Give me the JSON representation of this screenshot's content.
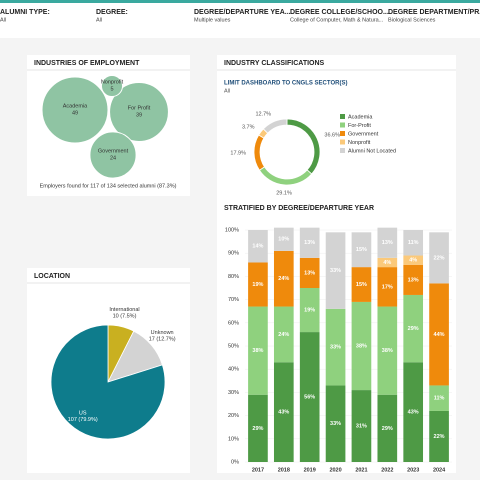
{
  "filters": [
    {
      "label": "ALUMNI TYPE:",
      "value": "All"
    },
    {
      "label": "DEGREE:",
      "value": "All"
    },
    {
      "label": "DEGREE/DEPARTURE YEA...",
      "value": "Multiple values"
    },
    {
      "label": "DEGREE COLLEGE/SCHOO...",
      "value": "College of Computer, Math & Natura..."
    },
    {
      "label": "DEGREE DEPARTMENT/PR...",
      "value": "Biological Sciences"
    }
  ],
  "chart_data": [
    {
      "type": "bubble",
      "title": "INDUSTRIES OF EMPLOYMENT",
      "categories": [
        "Academia",
        "For Profit",
        "Government",
        "Nonprofit"
      ],
      "values": [
        49,
        39,
        24,
        5
      ],
      "color": "#8fc4a3",
      "footnote": "Employers found for 117 of 134 selected alumni (87.3%)"
    },
    {
      "type": "donut",
      "title": "INDUSTRY CLASSIFICATIONS",
      "subtitle": "LIMIT DASHBOARD TO CNGLS SECTOR(S)",
      "subtitle_value": "All",
      "categories": [
        "Academia",
        "For-Profit",
        "Government",
        "Nonprofit",
        "Alumni Not Located"
      ],
      "values": [
        36.6,
        29.1,
        17.9,
        3.7,
        12.7
      ],
      "value_labels": [
        "36.6%",
        "29.1%",
        "17.9%",
        "3.7%",
        "12.7%"
      ],
      "colors": [
        "#4e9a45",
        "#8fd17e",
        "#ef8a0c",
        "#fbc97a",
        "#d3d3d3"
      ]
    },
    {
      "type": "bar",
      "stacked": true,
      "title": "STRATIFIED BY DEGREE/DEPARTURE YEAR",
      "categories": [
        "2017",
        "2018",
        "2019",
        "2020",
        "2021",
        "2022",
        "2023",
        "2024"
      ],
      "ylim": [
        0,
        100
      ],
      "yticks": [
        {
          "value": 0,
          "label": "0%"
        },
        {
          "value": 10,
          "label": "10%"
        },
        {
          "value": 20,
          "label": "20%"
        },
        {
          "value": 30,
          "label": "30%"
        },
        {
          "value": 40,
          "label": "40%"
        },
        {
          "value": 50,
          "label": "50%"
        },
        {
          "value": 60,
          "label": "60%"
        },
        {
          "value": 70,
          "label": "70%"
        },
        {
          "value": 80,
          "label": "80%"
        },
        {
          "value": 90,
          "label": "90%"
        },
        {
          "value": 100,
          "label": "100%"
        }
      ],
      "series": [
        {
          "color": "#4e9a45",
          "values": [
            29,
            43,
            56,
            33,
            31,
            29,
            43,
            22
          ],
          "value_labels": [
            "29%",
            "43%",
            "56%",
            "33%",
            "31%",
            "29%",
            "43%",
            "22%"
          ]
        },
        {
          "color": "#8fd17e",
          "values": [
            38,
            24,
            19,
            33,
            38,
            38,
            29,
            11
          ],
          "value_labels": [
            "38%",
            "24%",
            "19%",
            "33%",
            "38%",
            "38%",
            "29%",
            "11%"
          ]
        },
        {
          "color": "#ef8a0c",
          "values": [
            19,
            24,
            13,
            0,
            15,
            17,
            13,
            44
          ],
          "value_labels": [
            "19%",
            "24%",
            "13%",
            null,
            "15%",
            "17%",
            "13%",
            "44%"
          ]
        },
        {
          "color": "#fbc97a",
          "values": [
            0,
            0,
            0,
            0,
            0,
            4,
            4,
            0
          ],
          "value_labels": [
            null,
            null,
            null,
            null,
            null,
            "4%",
            "4%",
            null
          ]
        },
        {
          "color": "#d3d3d3",
          "values": [
            14,
            10,
            13,
            33,
            15,
            13,
            11,
            22
          ],
          "value_labels": [
            "14%",
            "10%",
            "13%",
            "33%",
            "15%",
            "13%",
            "11%",
            "22%"
          ]
        }
      ]
    },
    {
      "type": "pie",
      "title": "LOCATION",
      "categories": [
        "International",
        "Unknown",
        "US"
      ],
      "values": [
        10,
        17,
        107
      ],
      "value_labels": [
        "10 (7.5%)",
        "17 (12.7%)",
        "107 (79.9%)"
      ],
      "colors": [
        "#c9b020",
        "#d3d3d3",
        "#0e7c8c"
      ]
    }
  ]
}
